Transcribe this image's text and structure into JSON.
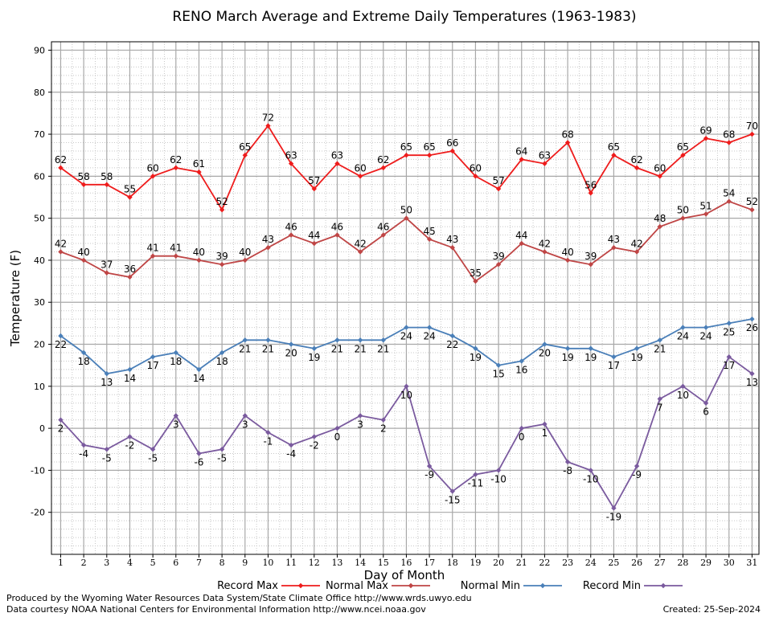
{
  "chart_data": {
    "type": "line",
    "title": "RENO March Average and Extreme Daily Temperatures (1963-1983)",
    "xlabel": "Day of Month",
    "ylabel": "Temperature (F)",
    "ylim": [
      -30,
      92
    ],
    "yticks": [
      90,
      80,
      70,
      60,
      50,
      40,
      30,
      20,
      10,
      0,
      -10,
      -20
    ],
    "xlim": [
      0.6,
      31.3
    ],
    "grid": true,
    "legend_position": "bottom",
    "x": [
      1,
      2,
      3,
      4,
      5,
      6,
      7,
      8,
      9,
      10,
      11,
      12,
      13,
      14,
      15,
      16,
      17,
      18,
      19,
      20,
      21,
      22,
      23,
      24,
      25,
      26,
      27,
      28,
      29,
      30,
      31
    ],
    "series": [
      {
        "name": "Record Max",
        "color": "#ee1c1c",
        "label_pos": "above",
        "values": [
          62,
          58,
          58,
          55,
          60,
          62,
          61,
          52,
          65,
          72,
          63,
          57,
          63,
          60,
          62,
          65,
          65,
          66,
          60,
          57,
          64,
          63,
          68,
          56,
          65,
          62,
          60,
          65,
          69,
          68,
          70
        ]
      },
      {
        "name": "Normal Max",
        "color": "#bf4545",
        "label_pos": "above",
        "values": [
          42,
          40,
          37,
          36,
          41,
          41,
          40,
          39,
          40,
          43,
          46,
          44,
          46,
          42,
          46,
          50,
          45,
          43,
          35,
          39,
          44,
          42,
          40,
          39,
          43,
          42,
          48,
          50,
          51,
          54,
          52
        ]
      },
      {
        "name": "Normal Min",
        "color": "#4a7fb8",
        "label_pos": "below",
        "values": [
          22,
          18,
          13,
          14,
          17,
          18,
          14,
          18,
          21,
          21,
          20,
          19,
          21,
          21,
          21,
          24,
          24,
          22,
          19,
          15,
          16,
          20,
          19,
          19,
          17,
          19,
          21,
          24,
          24,
          25,
          26
        ]
      },
      {
        "name": "Record Min",
        "color": "#7a5a9e",
        "label_pos": "below",
        "values": [
          2,
          -4,
          -5,
          -2,
          -5,
          3,
          -6,
          -5,
          3,
          -1,
          -4,
          -2,
          0,
          3,
          2,
          10,
          -9,
          -15,
          -11,
          -10,
          0,
          1,
          -8,
          -10,
          -19,
          -9,
          7,
          10,
          6,
          17,
          13
        ]
      }
    ]
  },
  "footer": {
    "line1": "Produced by the Wyoming Water Resources Data System/State Climate Office http://www.wrds.uwyo.edu",
    "line2": "Data courtesy NOAA National Centers for Environmental Information http://www.ncei.noaa.gov",
    "created": "Created:  25-Sep-2024"
  }
}
